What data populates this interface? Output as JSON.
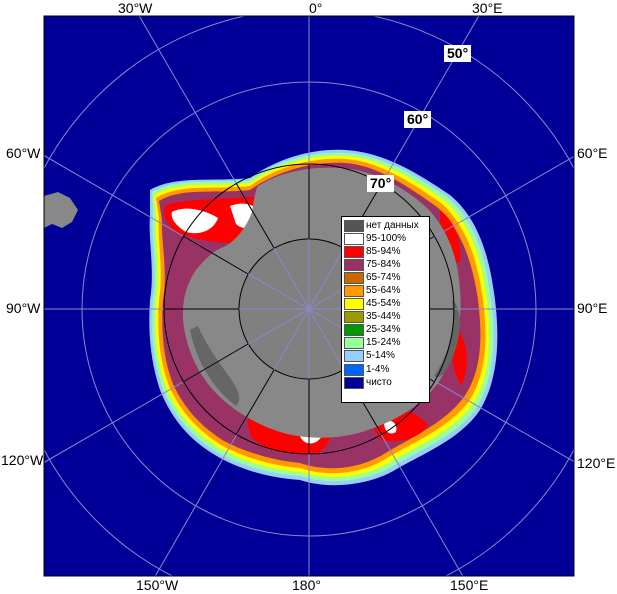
{
  "longitude_labels": {
    "top": [
      "30°W",
      "0°",
      "30°E"
    ],
    "bottom": [
      "150°W",
      "180°",
      "150°E"
    ],
    "left": [
      "60°W",
      "90°W",
      "120°W"
    ],
    "right": [
      "60°E",
      "90°E",
      "120°E"
    ]
  },
  "latitude_labels": [
    "50°",
    "60°",
    "70°"
  ],
  "legend": {
    "items": [
      {
        "label": "нет данных",
        "color": "#555555"
      },
      {
        "label": "95-100%",
        "color": "#ffffff"
      },
      {
        "label": "85-94%",
        "color": "#ff0000"
      },
      {
        "label": "75-84%",
        "color": "#993366"
      },
      {
        "label": "65-74%",
        "color": "#cc6600"
      },
      {
        "label": "55-64%",
        "color": "#ff9900"
      },
      {
        "label": "45-54%",
        "color": "#ffff00"
      },
      {
        "label": "35-44%",
        "color": "#999900"
      },
      {
        "label": "25-34%",
        "color": "#009900"
      },
      {
        "label": "15-24%",
        "color": "#99ff99"
      },
      {
        "label": "5-14%",
        "color": "#99ccff"
      },
      {
        "label": "1-4%",
        "color": "#0066ff"
      },
      {
        "label": "чисто",
        "color": "#000099"
      }
    ]
  },
  "colors": {
    "ocean": "#000099",
    "land": "#888888",
    "pole_hole": "#808080",
    "no_data": "#555555",
    "grid": "#000000"
  }
}
